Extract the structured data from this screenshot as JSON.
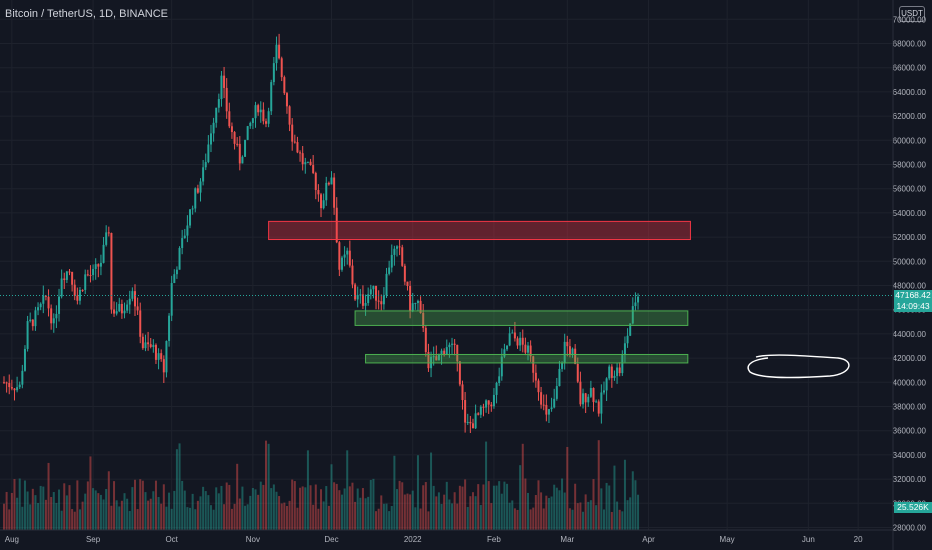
{
  "header": {
    "symbol": "Bitcoin / TetherUS, 1D, BINANCE",
    "currency_button": "USDT"
  },
  "price_tag": {
    "price": "47168.42",
    "countdown": "14:09:43",
    "color": "#26a69a"
  },
  "volume_tag": {
    "value": "25.526K",
    "color": "#26a69a"
  },
  "colors": {
    "background": "#131722",
    "up": "#26a69a",
    "down": "#ef5350",
    "grid": "#1e222d",
    "resistance_zone": "#f23645",
    "support_zone": "#4caf50"
  },
  "chart_data": {
    "type": "candlestick",
    "y_ticks": [
      "28000.00",
      "30000.00",
      "32000.00",
      "34000.00",
      "36000.00",
      "38000.00",
      "40000.00",
      "42000.00",
      "44000.00",
      "46000.00",
      "48000.00",
      "50000.00",
      "52000.00",
      "54000.00",
      "56000.00",
      "58000.00",
      "60000.00",
      "62000.00",
      "64000.00",
      "66000.00",
      "68000.00",
      "70000.00"
    ],
    "x_ticks": [
      "Aug",
      "Sep",
      "Oct",
      "Nov",
      "Dec",
      "2022",
      "Feb",
      "Mar",
      "Apr",
      "May",
      "Jun",
      "20"
    ],
    "ylim": [
      27500,
      71000
    ],
    "date_range": [
      "2021-07-29",
      "2022-03-28"
    ],
    "last_price": 47168.42,
    "close_series": [
      {
        "date": "2021-07-29",
        "close": 40000
      },
      {
        "date": "2021-08-01",
        "close": 39800
      },
      {
        "date": "2021-08-04",
        "close": 39600
      },
      {
        "date": "2021-08-07",
        "close": 44600
      },
      {
        "date": "2021-08-10",
        "close": 45400
      },
      {
        "date": "2021-08-14",
        "close": 47000
      },
      {
        "date": "2021-08-17",
        "close": 44700
      },
      {
        "date": "2021-08-20",
        "close": 48900
      },
      {
        "date": "2021-08-23",
        "close": 49300
      },
      {
        "date": "2021-08-26",
        "close": 46800
      },
      {
        "date": "2021-08-29",
        "close": 48800
      },
      {
        "date": "2021-09-01",
        "close": 48900
      },
      {
        "date": "2021-09-04",
        "close": 50000
      },
      {
        "date": "2021-09-07",
        "close": 52700
      },
      {
        "date": "2021-09-08",
        "close": 46000
      },
      {
        "date": "2021-09-12",
        "close": 46000
      },
      {
        "date": "2021-09-16",
        "close": 47800
      },
      {
        "date": "2021-09-20",
        "close": 43000
      },
      {
        "date": "2021-09-24",
        "close": 42800
      },
      {
        "date": "2021-09-28",
        "close": 41000
      },
      {
        "date": "2021-10-01",
        "close": 48100
      },
      {
        "date": "2021-10-05",
        "close": 51500
      },
      {
        "date": "2021-10-09",
        "close": 54900
      },
      {
        "date": "2021-10-13",
        "close": 57300
      },
      {
        "date": "2021-10-16",
        "close": 60900
      },
      {
        "date": "2021-10-20",
        "close": 65000
      },
      {
        "date": "2021-10-23",
        "close": 61300
      },
      {
        "date": "2021-10-27",
        "close": 58400
      },
      {
        "date": "2021-10-31",
        "close": 61300
      },
      {
        "date": "2021-11-03",
        "close": 62900
      },
      {
        "date": "2021-11-06",
        "close": 61500
      },
      {
        "date": "2021-11-10",
        "close": 67500
      },
      {
        "date": "2021-11-13",
        "close": 64300
      },
      {
        "date": "2021-11-16",
        "close": 60400
      },
      {
        "date": "2021-11-20",
        "close": 58200
      },
      {
        "date": "2021-11-24",
        "close": 57100
      },
      {
        "date": "2021-11-27",
        "close": 54800
      },
      {
        "date": "2021-12-01",
        "close": 57200
      },
      {
        "date": "2021-12-04",
        "close": 49400
      },
      {
        "date": "2021-12-07",
        "close": 50600
      },
      {
        "date": "2021-12-10",
        "close": 47100
      },
      {
        "date": "2021-12-13",
        "close": 46700
      },
      {
        "date": "2021-12-16",
        "close": 47700
      },
      {
        "date": "2021-12-20",
        "close": 46700
      },
      {
        "date": "2021-12-24",
        "close": 50800
      },
      {
        "date": "2021-12-27",
        "close": 50700
      },
      {
        "date": "2021-12-31",
        "close": 46300
      },
      {
        "date": "2022-01-03",
        "close": 46500
      },
      {
        "date": "2022-01-07",
        "close": 41600
      },
      {
        "date": "2022-01-10",
        "close": 41800
      },
      {
        "date": "2022-01-14",
        "close": 43100
      },
      {
        "date": "2022-01-18",
        "close": 42300
      },
      {
        "date": "2022-01-21",
        "close": 36300
      },
      {
        "date": "2022-01-24",
        "close": 36700
      },
      {
        "date": "2022-01-28",
        "close": 37700
      },
      {
        "date": "2022-02-01",
        "close": 38700
      },
      {
        "date": "2022-02-04",
        "close": 41600
      },
      {
        "date": "2022-02-07",
        "close": 43800
      },
      {
        "date": "2022-02-10",
        "close": 43500
      },
      {
        "date": "2022-02-14",
        "close": 42500
      },
      {
        "date": "2022-02-17",
        "close": 40500
      },
      {
        "date": "2022-02-21",
        "close": 37000
      },
      {
        "date": "2022-02-24",
        "close": 38300
      },
      {
        "date": "2022-02-28",
        "close": 43200
      },
      {
        "date": "2022-03-03",
        "close": 42400
      },
      {
        "date": "2022-03-06",
        "close": 38400
      },
      {
        "date": "2022-03-10",
        "close": 39400
      },
      {
        "date": "2022-03-13",
        "close": 37800
      },
      {
        "date": "2022-03-17",
        "close": 40900
      },
      {
        "date": "2022-03-21",
        "close": 41000
      },
      {
        "date": "2022-03-24",
        "close": 44000
      },
      {
        "date": "2022-03-27",
        "close": 46800
      },
      {
        "date": "2022-03-28",
        "close": 47168
      }
    ],
    "zones": [
      {
        "kind": "resistance",
        "from": "2021-11-07",
        "to": "2022-04-17",
        "low": 51800,
        "high": 53300
      },
      {
        "kind": "support",
        "from": "2021-12-10",
        "to": "2022-04-16",
        "low": 44700,
        "high": 45900
      },
      {
        "kind": "support",
        "from": "2021-12-14",
        "to": "2022-04-16",
        "low": 41600,
        "high": 42300
      }
    ]
  }
}
